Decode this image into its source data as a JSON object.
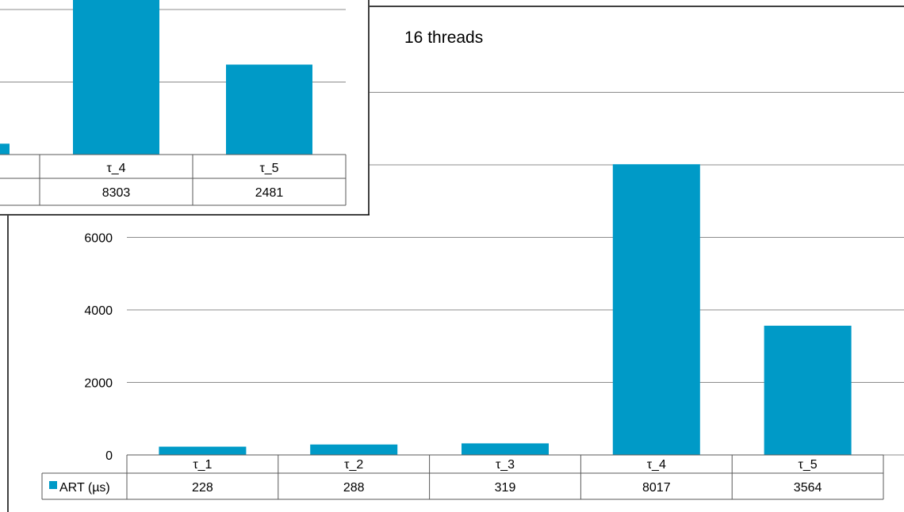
{
  "colors": {
    "bar": "#009ac7",
    "grid": "#8c8c8c",
    "table_border": "#595959",
    "frame": "#000000"
  },
  "chart_data": [
    {
      "type": "bar",
      "title": "16 threads",
      "categories": [
        "τ_1",
        "τ_2",
        "τ_3",
        "τ_4",
        "τ_5"
      ],
      "series": [
        {
          "name": "ART (µs)",
          "values": [
            228,
            288,
            319,
            8017,
            3564
          ]
        }
      ],
      "data_table_values": [
        "228",
        "288",
        "319",
        "8017",
        "3564"
      ],
      "yticks": [
        "0",
        "2000",
        "4000",
        "6000"
      ],
      "ylim": [
        0,
        10000
      ],
      "grid": true,
      "legend": "data-table"
    },
    {
      "type": "bar",
      "categories": [
        "τ_4",
        "τ_5"
      ],
      "series": [
        {
          "values": [
            8303,
            2481
          ]
        }
      ],
      "data_table_values": [
        "8303",
        "2481"
      ],
      "partial_bar_value": 300,
      "ylim": [
        0,
        10000
      ],
      "grid": true
    }
  ]
}
